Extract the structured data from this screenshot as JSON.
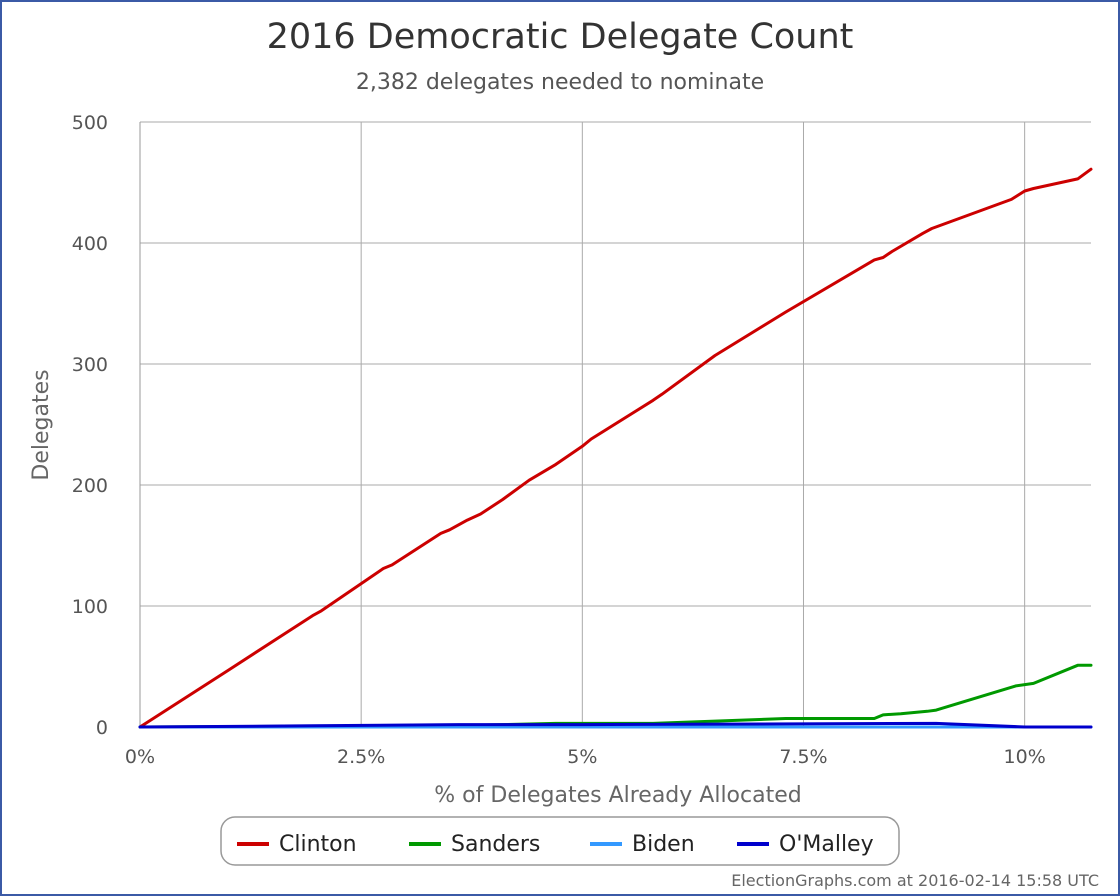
{
  "chart_data": {
    "type": "line",
    "title": "2016 Democratic Delegate Count",
    "subtitle": "2,382 delegates needed to nominate",
    "xlabel": "% of Delegates Already Allocated",
    "ylabel": "Delegates",
    "xlim": [
      0,
      10.75
    ],
    "ylim": [
      0,
      500
    ],
    "x_ticks": [
      0,
      2.5,
      5,
      7.5,
      10
    ],
    "x_tick_labels": [
      "0%",
      "2.5%",
      "5%",
      "7.5%",
      "10%"
    ],
    "y_ticks": [
      0,
      100,
      200,
      300,
      400,
      500
    ],
    "y_tick_labels": [
      "0",
      "100",
      "200",
      "300",
      "400",
      "500"
    ],
    "grid": true,
    "legend_position": "bottom",
    "series": [
      {
        "name": "Clinton",
        "color": "#cc0000",
        "points": [
          [
            0,
            0
          ],
          [
            1,
            47
          ],
          [
            1.95,
            92
          ],
          [
            2.05,
            96
          ],
          [
            2.75,
            131
          ],
          [
            2.85,
            134
          ],
          [
            3.4,
            160
          ],
          [
            3.5,
            163
          ],
          [
            3.7,
            171
          ],
          [
            3.85,
            176
          ],
          [
            4.1,
            188
          ],
          [
            4.4,
            204
          ],
          [
            4.7,
            217
          ],
          [
            5.0,
            232
          ],
          [
            5.1,
            238
          ],
          [
            5.8,
            270
          ],
          [
            5.9,
            275
          ],
          [
            6.5,
            307
          ],
          [
            7.3,
            343
          ],
          [
            8.3,
            386
          ],
          [
            8.4,
            388
          ],
          [
            8.5,
            393
          ],
          [
            8.85,
            408
          ],
          [
            8.95,
            412
          ],
          [
            9.85,
            436
          ],
          [
            10.0,
            443
          ],
          [
            10.1,
            445
          ],
          [
            10.6,
            453
          ],
          [
            10.75,
            461
          ]
        ]
      },
      {
        "name": "Sanders",
        "color": "#009900",
        "points": [
          [
            0,
            0
          ],
          [
            3.5,
            1
          ],
          [
            4.7,
            3
          ],
          [
            5.8,
            3
          ],
          [
            7.3,
            7
          ],
          [
            8.3,
            7
          ],
          [
            8.4,
            10
          ],
          [
            8.6,
            11
          ],
          [
            8.9,
            13
          ],
          [
            9.0,
            14
          ],
          [
            9.9,
            34
          ],
          [
            10.1,
            36
          ],
          [
            10.6,
            51
          ],
          [
            10.75,
            51
          ]
        ]
      },
      {
        "name": "Biden",
        "color": "#3399ff",
        "points": [
          [
            0,
            0
          ],
          [
            10.75,
            0
          ]
        ]
      },
      {
        "name": "O'Malley",
        "color": "#0000cc",
        "points": [
          [
            0,
            0
          ],
          [
            1.95,
            1
          ],
          [
            3.6,
            2
          ],
          [
            5.0,
            2
          ],
          [
            9.0,
            3
          ],
          [
            10.0,
            0
          ],
          [
            10.75,
            0
          ]
        ]
      }
    ]
  },
  "credit": "ElectionGraphs.com at 2016-02-14 15:58 UTC"
}
